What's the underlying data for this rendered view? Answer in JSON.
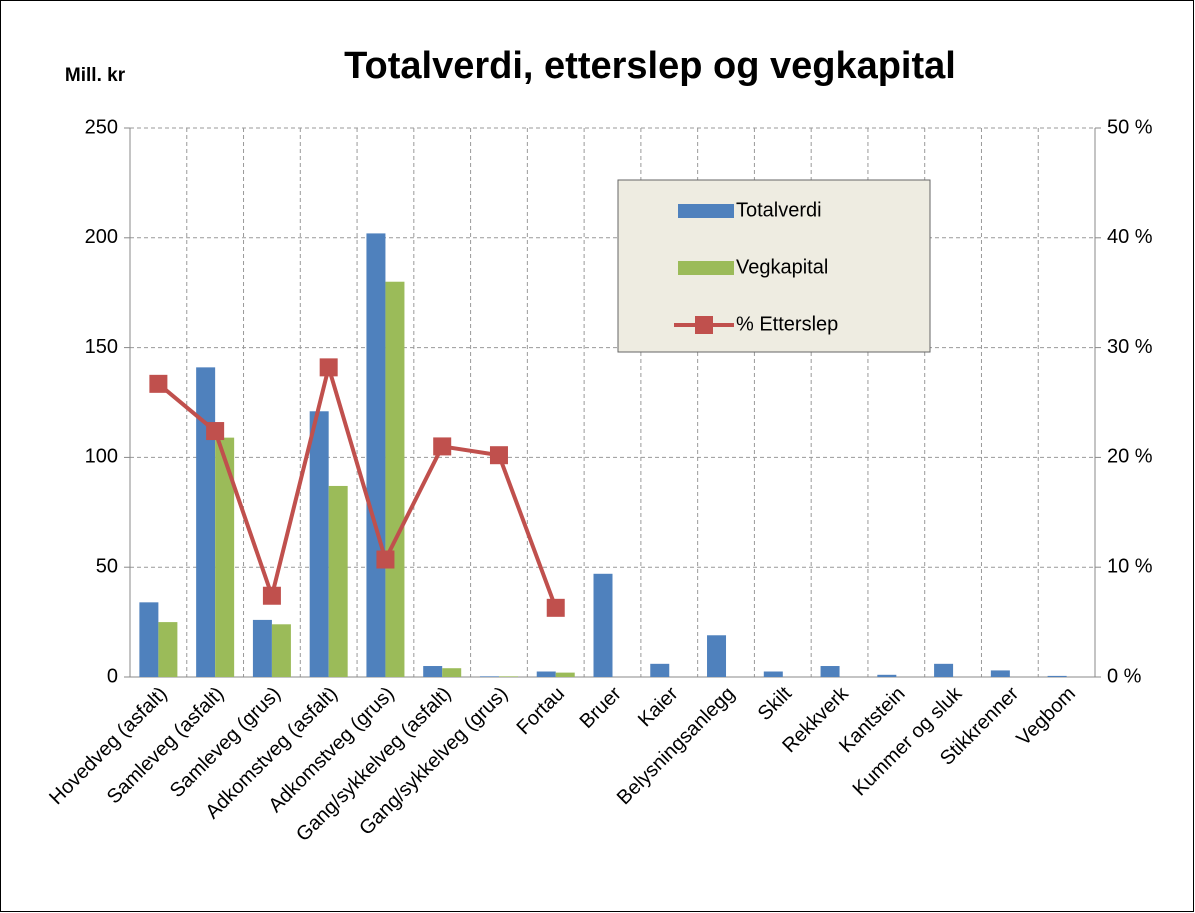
{
  "chart_data": {
    "type": "bar",
    "title": "Totalverdi, etterslep og vegkapital",
    "y_label": "Mill. kr",
    "categories": [
      "Hovedveg (asfalt)",
      "Samleveg (asfalt)",
      "Samleveg (grus)",
      "Adkomstveg (asfalt)",
      "Adkomstveg (grus)",
      "Gang/sykkelveg (asfalt)",
      "Gang/sykkelveg (grus)",
      "Fortau",
      "Bruer",
      "Kaier",
      "Belysningsanlegg",
      "Skilt",
      "Rekkverk",
      "Kantstein",
      "Kummer og sluk",
      "Stikkrenner",
      "Vegbom"
    ],
    "series": [
      {
        "name": "Totalverdi",
        "color": "#4f81bd",
        "values": [
          34,
          141,
          26,
          121,
          202,
          5,
          0.3,
          2.5,
          47,
          6,
          19,
          2.5,
          5,
          1,
          6,
          3,
          0.5
        ]
      },
      {
        "name": "Vegkapital",
        "color": "#9bbb59",
        "values": [
          25,
          109,
          24,
          87,
          180,
          4,
          0.3,
          2,
          0,
          0,
          0,
          0,
          0,
          0,
          0,
          0,
          0
        ]
      },
      {
        "name": "% Etterslep",
        "color": "#c0504d",
        "type": "line",
        "axis": "y2",
        "values": [
          26.7,
          22.4,
          7.4,
          28.2,
          10.7,
          21.0,
          20.2,
          6.3,
          null,
          null,
          null,
          null,
          null,
          null,
          null,
          null,
          null
        ]
      }
    ],
    "ylim": [
      0,
      250
    ],
    "yticks": [
      0,
      50,
      100,
      150,
      200,
      250
    ],
    "y2lim": [
      0,
      50
    ],
    "y2ticks": [
      {
        "value": 0,
        "label": "0 %"
      },
      {
        "value": 10,
        "label": "10 %"
      },
      {
        "value": 20,
        "label": "20 %"
      },
      {
        "value": 30,
        "label": "30 %"
      },
      {
        "value": 40,
        "label": "40 %"
      },
      {
        "value": 50,
        "label": "50 %"
      }
    ],
    "grid": true
  }
}
